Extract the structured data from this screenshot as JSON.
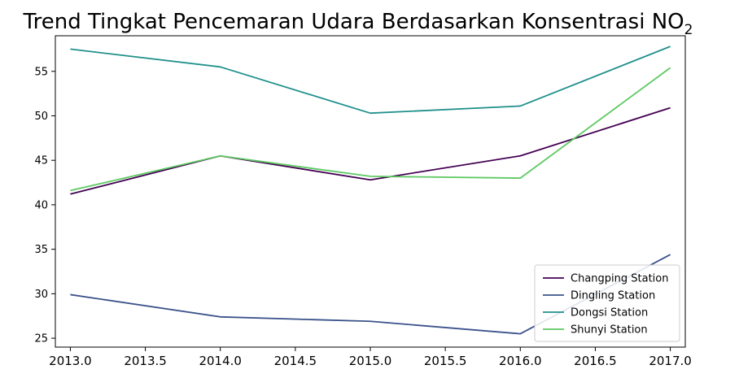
{
  "chart_data": {
    "type": "line",
    "title": "Trend Tingkat Pencemaran Udara Berdasarkan Konsentrasi NO",
    "title_subscript": "2",
    "xlabel": "",
    "ylabel": "",
    "x": [
      2013,
      2014,
      2015,
      2016,
      2017
    ],
    "xlim": [
      2012.9,
      2017.1
    ],
    "ylim": [
      24,
      59
    ],
    "xticks": [
      2013.0,
      2013.5,
      2014.0,
      2014.5,
      2015.0,
      2015.5,
      2016.0,
      2016.5,
      2017.0
    ],
    "xtick_labels": [
      "2013.0",
      "2013.5",
      "2014.0",
      "2014.5",
      "2015.0",
      "2015.5",
      "2016.0",
      "2016.5",
      "2017.0"
    ],
    "yticks": [
      25,
      30,
      35,
      40,
      45,
      50,
      55
    ],
    "ytick_labels": [
      "25",
      "30",
      "35",
      "40",
      "45",
      "50",
      "55"
    ],
    "grid": false,
    "legend_position": "bottom-right",
    "series": [
      {
        "name": "Changping Station",
        "color": "#440154",
        "values": [
          41.2,
          45.5,
          42.8,
          45.5,
          50.9
        ]
      },
      {
        "name": "Dingling Station",
        "color": "#3b528b",
        "values": [
          29.9,
          27.4,
          26.9,
          25.5,
          34.4
        ]
      },
      {
        "name": "Dongsi Station",
        "color": "#21918c",
        "values": [
          57.5,
          55.5,
          50.3,
          51.1,
          57.8
        ]
      },
      {
        "name": "Shunyi Station",
        "color": "#5ec962",
        "values": [
          41.6,
          45.5,
          43.2,
          43.0,
          55.4
        ]
      }
    ]
  }
}
